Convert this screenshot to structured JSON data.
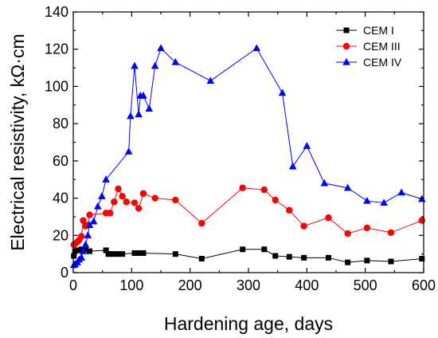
{
  "chart_data": {
    "type": "line",
    "xlabel": "Hardening age, days",
    "ylabel": "Electrical resistivity, kΩ·cm",
    "xlim": [
      0,
      600
    ],
    "ylim": [
      0,
      140
    ],
    "xticks": [
      0,
      100,
      200,
      300,
      400,
      500,
      600
    ],
    "yticks": [
      0,
      20,
      40,
      60,
      80,
      100,
      120,
      140
    ],
    "grid": false,
    "legend_position": "top-right",
    "series": [
      {
        "name": "CEM I",
        "color": "#000000",
        "marker": "square",
        "x": [
          1,
          3,
          7,
          14,
          21,
          28,
          56,
          60,
          63,
          70,
          77,
          84,
          105,
          112,
          120,
          175,
          220,
          290,
          327,
          346,
          370,
          395,
          437,
          470,
          503,
          544,
          597
        ],
        "y": [
          9.0,
          11.5,
          12.0,
          12.5,
          12.5,
          11.5,
          12.0,
          10.0,
          10.0,
          10.0,
          10.0,
          10.0,
          10.5,
          10.5,
          10.5,
          10.0,
          7.5,
          12.5,
          12.5,
          9.0,
          8.5,
          8.0,
          8.0,
          5.5,
          6.5,
          6.0,
          7.5
        ]
      },
      {
        "name": "CEM III",
        "color": "#ff0000",
        "marker": "circle",
        "x": [
          1,
          3,
          7,
          10,
          14,
          17,
          21,
          25,
          28,
          56,
          63,
          70,
          77,
          84,
          91,
          105,
          112,
          120,
          140,
          175,
          220,
          290,
          327,
          346,
          370,
          395,
          437,
          470,
          503,
          544,
          597
        ],
        "y": [
          15.0,
          15.5,
          16.5,
          17.5,
          19.5,
          28.0,
          25.0,
          25.5,
          31.0,
          32.0,
          32.0,
          38.0,
          45.0,
          41.0,
          38.0,
          37.5,
          34.5,
          42.5,
          40.0,
          39.0,
          26.5,
          45.5,
          44.5,
          39.0,
          33.5,
          25.0,
          29.5,
          21.0,
          24.0,
          21.5,
          28.0
        ]
      },
      {
        "name": "CEM IV",
        "color": "#0000ff",
        "marker": "triangle",
        "x": [
          1,
          3,
          7,
          10,
          14,
          17,
          21,
          25,
          28,
          35,
          42,
          49,
          56,
          95,
          98,
          105,
          112,
          115,
          120,
          130,
          140,
          150,
          175,
          235,
          314,
          358,
          376,
          400,
          430,
          470,
          503,
          532,
          562,
          597
        ],
        "y": [
          4.0,
          4.5,
          5.5,
          7.0,
          8.0,
          11.5,
          15.0,
          20.0,
          25.5,
          27.5,
          35.5,
          41.0,
          50.0,
          65.0,
          84.0,
          111.0,
          85.0,
          95.0,
          95.0,
          88.0,
          111.0,
          120.5,
          113.0,
          103.0,
          120.5,
          96.5,
          57.0,
          68.0,
          48.0,
          45.5,
          38.5,
          37.5,
          43.0,
          39.5
        ]
      }
    ]
  }
}
